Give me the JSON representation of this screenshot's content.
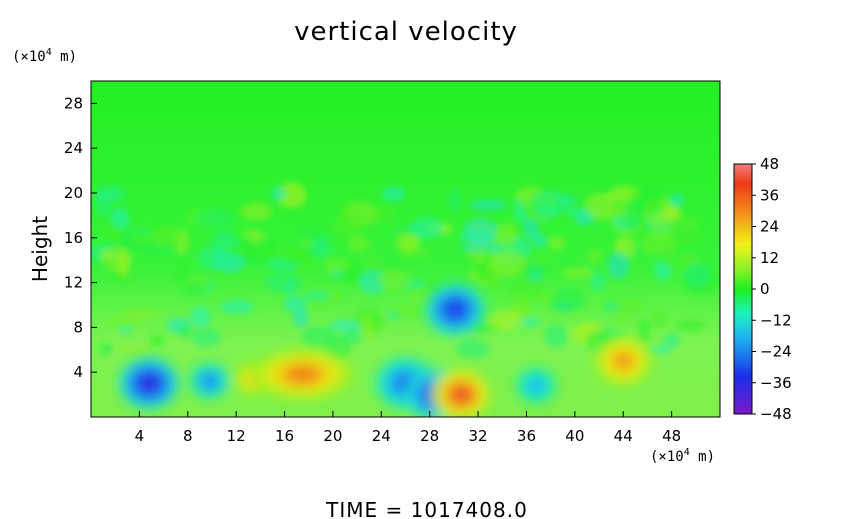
{
  "chart_data": {
    "type": "heatmap",
    "title": "vertical velocity",
    "ylabel": "Height",
    "x_unit_prefix": "(×10",
    "x_unit_exp": "4",
    "x_unit_suffix": " m)",
    "y_unit_prefix": "(×10",
    "y_unit_exp": "4",
    "y_unit_suffix": " m)",
    "xlim": [
      0,
      52
    ],
    "ylim": [
      0,
      30
    ],
    "x_ticks": [
      "4",
      "8",
      "12",
      "16",
      "20",
      "24",
      "28",
      "32",
      "36",
      "40",
      "44",
      "48"
    ],
    "y_ticks": [
      "4",
      "8",
      "12",
      "16",
      "20",
      "24",
      "28"
    ],
    "colorbar": {
      "range": [
        -48,
        48
      ],
      "labels": [
        "48",
        "36",
        "24",
        "12",
        "0",
        "−12",
        "−24",
        "−36",
        "−48"
      ]
    },
    "features": [
      {
        "x": 4.8,
        "y": 3.0,
        "value": -42
      },
      {
        "x": 9.8,
        "y": 3.2,
        "value": -28
      },
      {
        "x": 13.4,
        "y": 3.4,
        "value": 26
      },
      {
        "x": 17.5,
        "y": 3.8,
        "value": 32
      },
      {
        "x": 26.0,
        "y": 3.0,
        "value": -30
      },
      {
        "x": 28.5,
        "y": 2.0,
        "value": -38
      },
      {
        "x": 30.6,
        "y": 2.0,
        "value": 38
      },
      {
        "x": 30.1,
        "y": 9.6,
        "value": -38
      },
      {
        "x": 36.8,
        "y": 2.8,
        "value": -22
      },
      {
        "x": 44.0,
        "y": 5.0,
        "value": 30
      }
    ]
  },
  "footer": "TIME  =  1017408.0"
}
